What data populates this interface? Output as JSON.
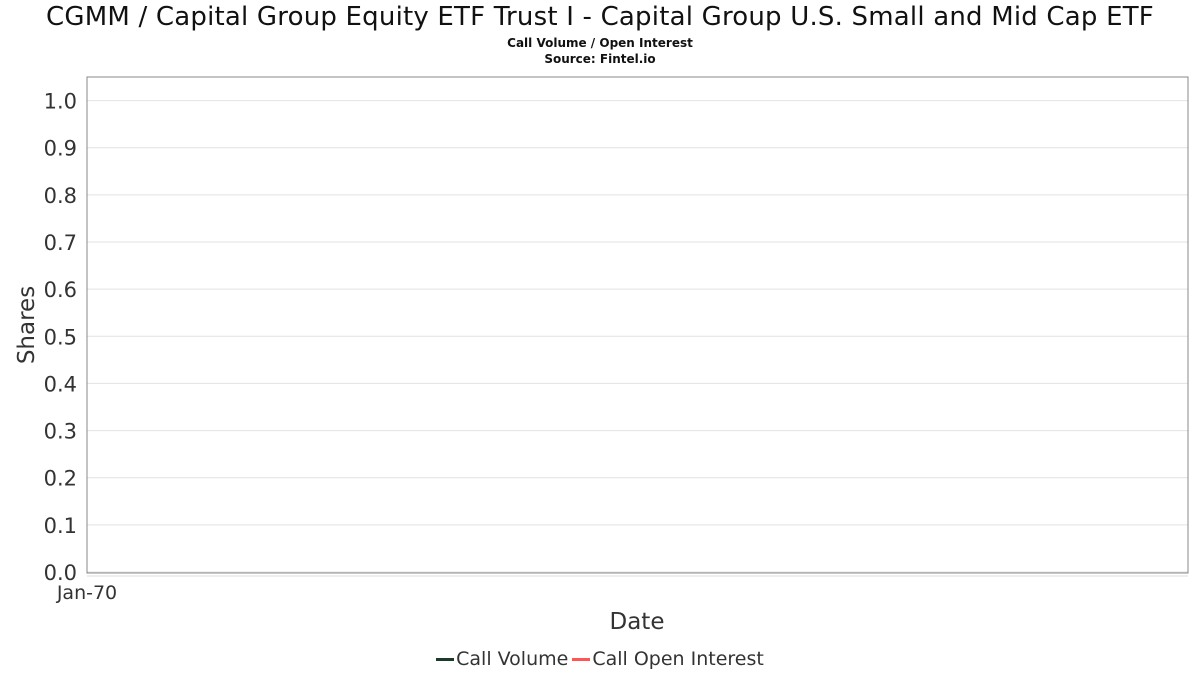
{
  "chart_data": {
    "type": "line",
    "title": "CGMM / Capital Group Equity ETF Trust I - Capital Group U.S. Small and Mid Cap ETF",
    "subtitle": "Call Volume / Open Interest",
    "source": "Source: Fintel.io",
    "xlabel": "Date",
    "ylabel": "Shares",
    "x_ticks": [
      "Jan-70"
    ],
    "y_ticks": [
      "0.0",
      "0.1",
      "0.2",
      "0.3",
      "0.4",
      "0.5",
      "0.6",
      "0.7",
      "0.8",
      "0.9",
      "1.0"
    ],
    "ylim": [
      0,
      1.05
    ],
    "grid": true,
    "legend_position": "bottom",
    "series": [
      {
        "name": "Call Volume",
        "color": "#1a3a2a",
        "values": []
      },
      {
        "name": "Call Open Interest",
        "color": "#ff5555",
        "values": []
      }
    ]
  }
}
